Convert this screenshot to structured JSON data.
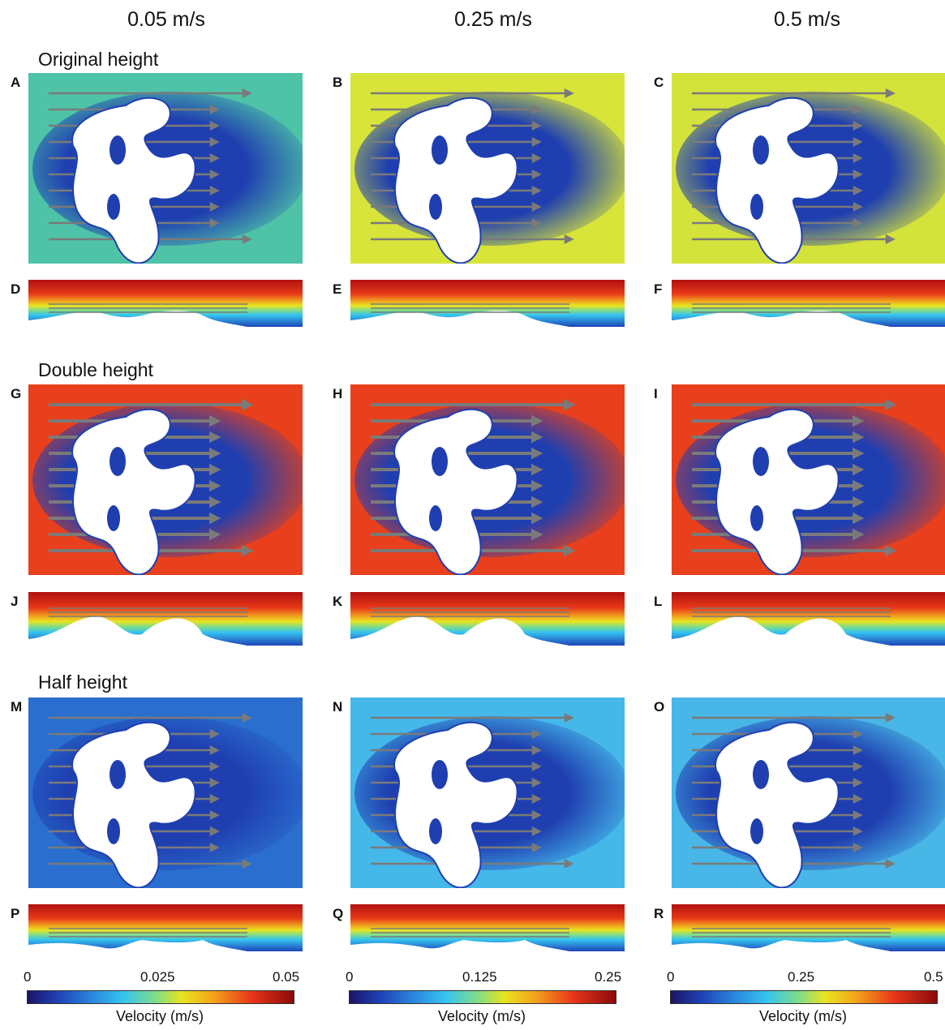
{
  "columns": [
    "0.05 m/s",
    "0.25 m/s",
    "0.5 m/s"
  ],
  "rows": [
    "Original height",
    "Double height",
    "Half height"
  ],
  "panel_labels": [
    "A",
    "B",
    "C",
    "D",
    "E",
    "F",
    "G",
    "H",
    "I",
    "J",
    "K",
    "L",
    "M",
    "N",
    "O",
    "P",
    "Q",
    "R"
  ],
  "colorbars": [
    {
      "ticks": [
        "0",
        "0.025",
        "0.05"
      ],
      "label": "Velocity (m/s)"
    },
    {
      "ticks": [
        "0",
        "0.125",
        "0.25"
      ],
      "label": "Velocity (m/s)"
    },
    {
      "ticks": [
        "0",
        "0.25",
        "0.5"
      ],
      "label": "Velocity (m/s)"
    }
  ],
  "colors": {
    "original_05": "#4fc3a8",
    "original_25": "#d8e43a",
    "original_50": "#d4e23c",
    "double": "#e8401c",
    "half_05": "#2a6fd0",
    "half_25": "#45b8ea",
    "half_50": "#48b6e6",
    "wake": "#1f3fb0",
    "arrow": "#7a7a7a"
  }
}
